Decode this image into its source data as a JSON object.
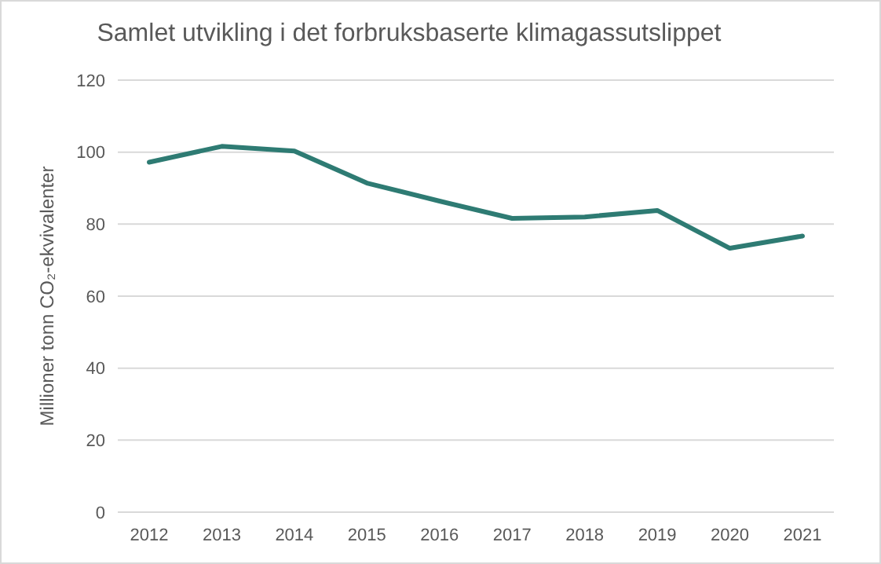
{
  "chart_data": {
    "type": "line",
    "title": "Samlet utvikling i det forbruksbaserte klimagassutslippet",
    "ylabel": "Millioner tonn CO₂-ekvivalenter",
    "categories": [
      "2012",
      "2013",
      "2014",
      "2015",
      "2016",
      "2017",
      "2018",
      "2019",
      "2020",
      "2021"
    ],
    "series": [
      {
        "color": "#2e7b73",
        "values": [
          97.2,
          101.6,
          100.3,
          91.4,
          86.4,
          81.6,
          82.0,
          83.8,
          73.3,
          76.7
        ]
      }
    ],
    "ylim": [
      0,
      120
    ],
    "yticks": [
      0,
      20,
      40,
      60,
      80,
      100,
      120
    ],
    "grid": "y",
    "marker": "none",
    "line_style": "solid"
  }
}
